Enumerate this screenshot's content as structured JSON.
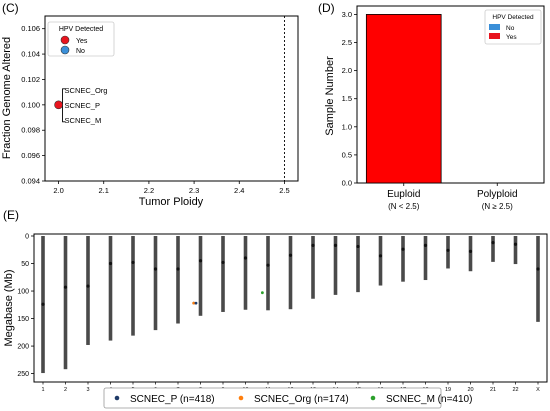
{
  "panel_labels": {
    "c": "(C)",
    "d": "(D)",
    "e": "(E)"
  },
  "colors": {
    "yes": "#e8141e",
    "no": "#3a8fd8",
    "bar_euploid": "#ff0000",
    "track": "#4a4a4a",
    "scnec_p": "#1f3b68",
    "scnec_org": "#ff7f0e",
    "scnec_m": "#2ca02c"
  },
  "chart_data": [
    {
      "type": "scatter",
      "panel": "(C)",
      "xlabel": "Tumor Ploidy",
      "ylabel": "Fraction Genome Altered",
      "xlim": [
        1.97,
        2.53
      ],
      "ylim": [
        0.094,
        0.107
      ],
      "xticks": [
        "2.0",
        "2.1",
        "2.2",
        "2.3",
        "2.4",
        "2.5"
      ],
      "yticks": [
        "0.094",
        "0.096",
        "0.098",
        "0.100",
        "0.102",
        "0.104",
        "0.106"
      ],
      "threshold_x": 2.5,
      "legend": {
        "title": "HPV Detected",
        "entries": [
          {
            "label": "Yes",
            "color": "#e8141e"
          },
          {
            "label": "No",
            "color": "#3a8fd8"
          }
        ],
        "placement": "top-left"
      },
      "points": [
        {
          "x": 2.0,
          "y": 0.1,
          "hpv": "Yes"
        }
      ],
      "annotations": [
        "SCNEC_Org",
        "SCNEC_P",
        "SCNEC_M"
      ]
    },
    {
      "type": "bar",
      "panel": "(D)",
      "ylabel": "Sample Number",
      "categories": [
        "Euploid",
        "Polyploid"
      ],
      "category_sublabels": [
        "(N < 2.5)",
        "(N ≥ 2.5)"
      ],
      "series": [
        {
          "name": "Yes",
          "values": [
            3,
            0
          ]
        },
        {
          "name": "No",
          "values": [
            0,
            0
          ]
        }
      ],
      "ylim": [
        0,
        3.15
      ],
      "yticks": [
        "0.0",
        "0.5",
        "1.0",
        "1.5",
        "2.0",
        "2.5",
        "3.0"
      ],
      "legend": {
        "title": "HPV Detected",
        "entries": [
          {
            "label": "No",
            "color": "#3a8fd8"
          },
          {
            "label": "Yes",
            "color": "#e8141e"
          }
        ],
        "placement": "top-right"
      }
    },
    {
      "type": "scatter",
      "panel": "(E)",
      "ylabel": "Megabase (Mb)",
      "yticks": [
        "0",
        "50",
        "100",
        "150",
        "200",
        "250"
      ],
      "ylim": [
        0,
        258
      ],
      "chromosomes": [
        "1",
        "2",
        "3",
        "4",
        "5",
        "6",
        "7",
        "8",
        "9",
        "10",
        "11",
        "12",
        "13",
        "14",
        "15",
        "16",
        "17",
        "18",
        "19",
        "20",
        "21",
        "22",
        "X"
      ],
      "chromosome_lengths": [
        249,
        242,
        198,
        190,
        181,
        171,
        159,
        145,
        138,
        134,
        135,
        133,
        114,
        107,
        102,
        90,
        83,
        80,
        59,
        64,
        47,
        51,
        156
      ],
      "centromeres": [
        124,
        93,
        91,
        50,
        48,
        60,
        60,
        45,
        48,
        40,
        53,
        35,
        17,
        17,
        19,
        36,
        24,
        17,
        26,
        28,
        12,
        15,
        60
      ],
      "legend": {
        "entries": [
          {
            "label": "SCNEC_P (n=418)",
            "color": "#1f3b68"
          },
          {
            "label": "SCNEC_Org (n=174)",
            "color": "#ff7f0e"
          },
          {
            "label": "SCNEC_M (n=410)",
            "color": "#2ca02c"
          }
        ],
        "placement": "bottom"
      },
      "points": [
        {
          "chrom": "7.7",
          "mb": 122,
          "sample": "SCNEC_P"
        },
        {
          "chrom": "7.7",
          "mb": 122,
          "sample": "SCNEC_Org"
        },
        {
          "chrom": "7.8",
          "mb": 122,
          "sample": "SCNEC_P"
        },
        {
          "chrom": "10.75",
          "mb": 103,
          "sample": "SCNEC_M"
        }
      ]
    }
  ]
}
